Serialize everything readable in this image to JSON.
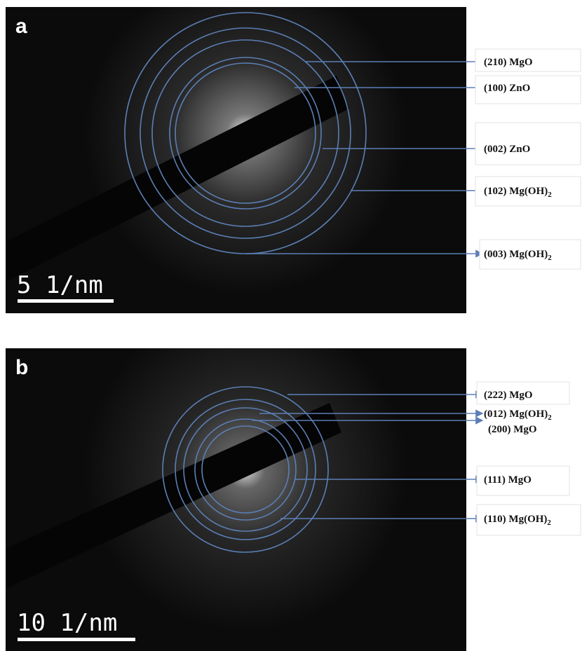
{
  "panels": [
    {
      "label": "a",
      "scale_bar": "5 1/nm",
      "rings": [
        {
          "index": "(210)",
          "phase": "MgO"
        },
        {
          "index": "(100)",
          "phase": "ZnO"
        },
        {
          "index": "(002)",
          "phase": "ZnO"
        },
        {
          "index": "(102)",
          "phase": "Mg(OH)",
          "sub": "2"
        },
        {
          "index": "(003)",
          "phase": "Mg(OH)",
          "sub": "2"
        }
      ]
    },
    {
      "label": "b",
      "scale_bar": "10 1/nm",
      "rings": [
        {
          "index": "(222)",
          "phase": "MgO"
        },
        {
          "index": "(012)",
          "phase": "Mg(OH)",
          "sub": "2"
        },
        {
          "index": "(200)",
          "phase": "MgO"
        },
        {
          "index": "(111)",
          "phase": "MgO"
        },
        {
          "index": "(110)",
          "phase": "Mg(OH)",
          "sub": "2"
        }
      ]
    }
  ]
}
